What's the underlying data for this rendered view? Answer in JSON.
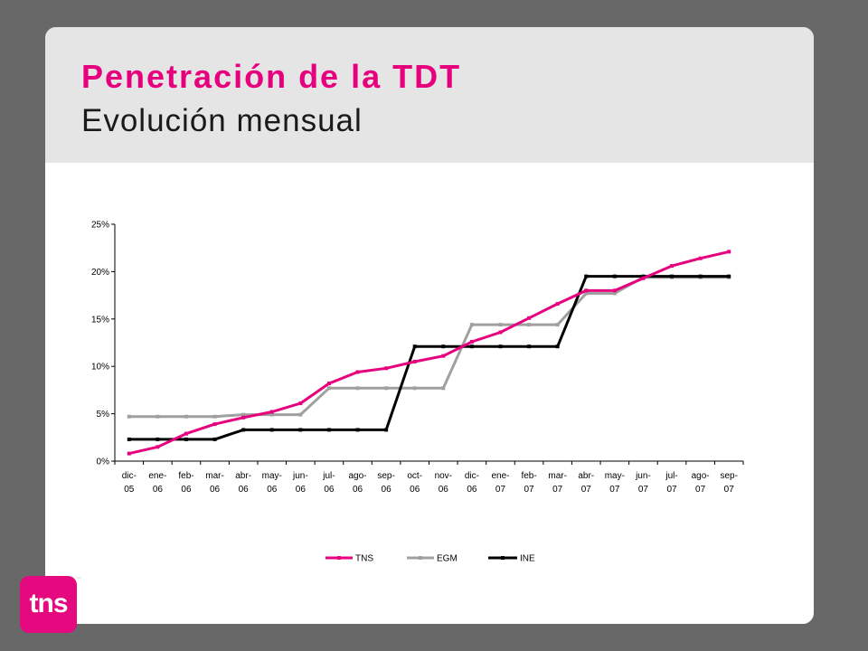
{
  "theme": {
    "page_background": "#686868",
    "header_background": "#e5e5e5",
    "title_color": "#e6007e",
    "logo_color": "#e5097f"
  },
  "slide": {
    "title": "Penetración de la TDT",
    "subtitle": "Evolución mensual"
  },
  "logo": {
    "text": "tns",
    "trademark": "™"
  },
  "chart_data": {
    "type": "line",
    "categories": [
      "dic-05",
      "ene-06",
      "feb-06",
      "mar-06",
      "abr-06",
      "may-06",
      "jun-06",
      "jul-06",
      "ago-06",
      "sep-06",
      "oct-06",
      "nov-06",
      "dic-06",
      "ene-07",
      "feb-07",
      "mar-07",
      "abr-07",
      "may-07",
      "jun-07",
      "jul-07",
      "ago-07",
      "sep-07"
    ],
    "y_ticks": [
      "0%",
      "5%",
      "10%",
      "15%",
      "20%",
      "25%"
    ],
    "ylim": [
      0,
      25
    ],
    "y_unit": "%",
    "grid": false,
    "markers": true,
    "legend_position": "bottom",
    "series": [
      {
        "name": "TNS",
        "color": "#e6007e",
        "values": [
          0.8,
          1.5,
          2.9,
          3.9,
          4.6,
          5.2,
          6.1,
          8.2,
          9.4,
          9.8,
          10.5,
          11.1,
          12.6,
          13.6,
          15.1,
          16.6,
          18.0,
          18.0,
          19.3,
          20.6,
          21.4,
          22.1
        ]
      },
      {
        "name": "EGM",
        "color": "#a0a0a0",
        "values": [
          4.7,
          4.7,
          4.7,
          4.7,
          4.9,
          4.9,
          4.9,
          7.7,
          7.7,
          7.7,
          7.7,
          7.7,
          14.4,
          14.4,
          14.4,
          14.4,
          17.7,
          17.7,
          19.4,
          19.4,
          19.4,
          19.4
        ]
      },
      {
        "name": "INE",
        "color": "#000000",
        "values": [
          2.3,
          2.3,
          2.3,
          2.3,
          3.3,
          3.3,
          3.3,
          3.3,
          3.3,
          3.3,
          12.1,
          12.1,
          12.1,
          12.1,
          12.1,
          12.1,
          19.5,
          19.5,
          19.5,
          19.5,
          19.5,
          19.5
        ]
      }
    ]
  }
}
